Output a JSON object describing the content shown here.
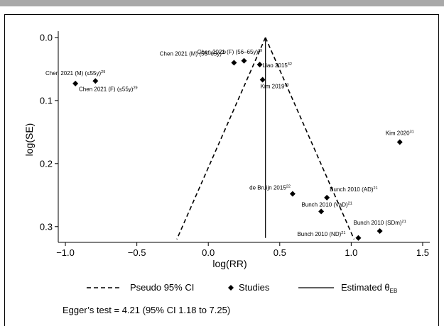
{
  "chart_data": {
    "type": "scatter",
    "title": "",
    "xlabel": "log(RR)",
    "ylabel": "log(SE)",
    "xlim": [
      -1.05,
      1.55
    ],
    "ylim": [
      -0.01,
      0.325
    ],
    "y_reversed": true,
    "grid": false,
    "x_ticks": [
      "−1.0",
      "−0.5",
      "0.0",
      "0.5",
      "1.0",
      "1.5"
    ],
    "x_tick_values": [
      -1.0,
      -0.5,
      0.0,
      0.5,
      1.0,
      1.5
    ],
    "y_ticks": [
      "0.0",
      "0.1",
      "0.2",
      "0.3"
    ],
    "y_tick_values": [
      0.0,
      0.1,
      0.2,
      0.3
    ],
    "estimate": 0.4,
    "ci_bottom": [
      -0.22,
      1.02
    ],
    "ci_bottom_se": 0.32,
    "series": [
      {
        "name": "Studies",
        "points": [
          {
            "label": "Chen 2021 (M) (≤55y)",
            "ref": "29",
            "x": -0.93,
            "y": 0.073
          },
          {
            "label": "Chen 2021 (F) (≤55y)",
            "ref": "29",
            "x": -0.79,
            "y": 0.069
          },
          {
            "label": "Chen 2021 (M) (56–65y)",
            "ref": "29",
            "x": 0.18,
            "y": 0.04
          },
          {
            "label": "Chen 2021 (F) (56–65y)",
            "ref": "29",
            "x": 0.25,
            "y": 0.037
          },
          {
            "label": "Liao 2015",
            "ref": "32",
            "x": 0.36,
            "y": 0.043
          },
          {
            "label": "Kim 2019",
            "ref": "30",
            "x": 0.38,
            "y": 0.067
          },
          {
            "label": "Kim 2020",
            "ref": "31",
            "x": 1.34,
            "y": 0.166
          },
          {
            "label": "de Bruijn 2015",
            "ref": "22",
            "x": 0.59,
            "y": 0.248
          },
          {
            "label": "Bunch 2010 (AD)",
            "ref": "21",
            "x": 0.83,
            "y": 0.254
          },
          {
            "label": "Bunch 2010 (VaD)",
            "ref": "21",
            "x": 0.79,
            "y": 0.276
          },
          {
            "label": "Bunch 2010 (SDm)",
            "ref": "21",
            "x": 1.2,
            "y": 0.307
          },
          {
            "label": "Bunch 2010 (ND)",
            "ref": "21",
            "x": 1.05,
            "y": 0.318
          }
        ]
      }
    ],
    "legend": {
      "position": "bottom",
      "items": [
        {
          "label": "Pseudo 95% CI",
          "style": "dashed"
        },
        {
          "label": "Studies",
          "style": "diamond"
        },
        {
          "label": "Estimated θ",
          "subscript": "EB",
          "style": "solid"
        }
      ]
    },
    "annotation": "Egger’s test = 4.21 (95% CI 1.18 to 7.25)"
  }
}
